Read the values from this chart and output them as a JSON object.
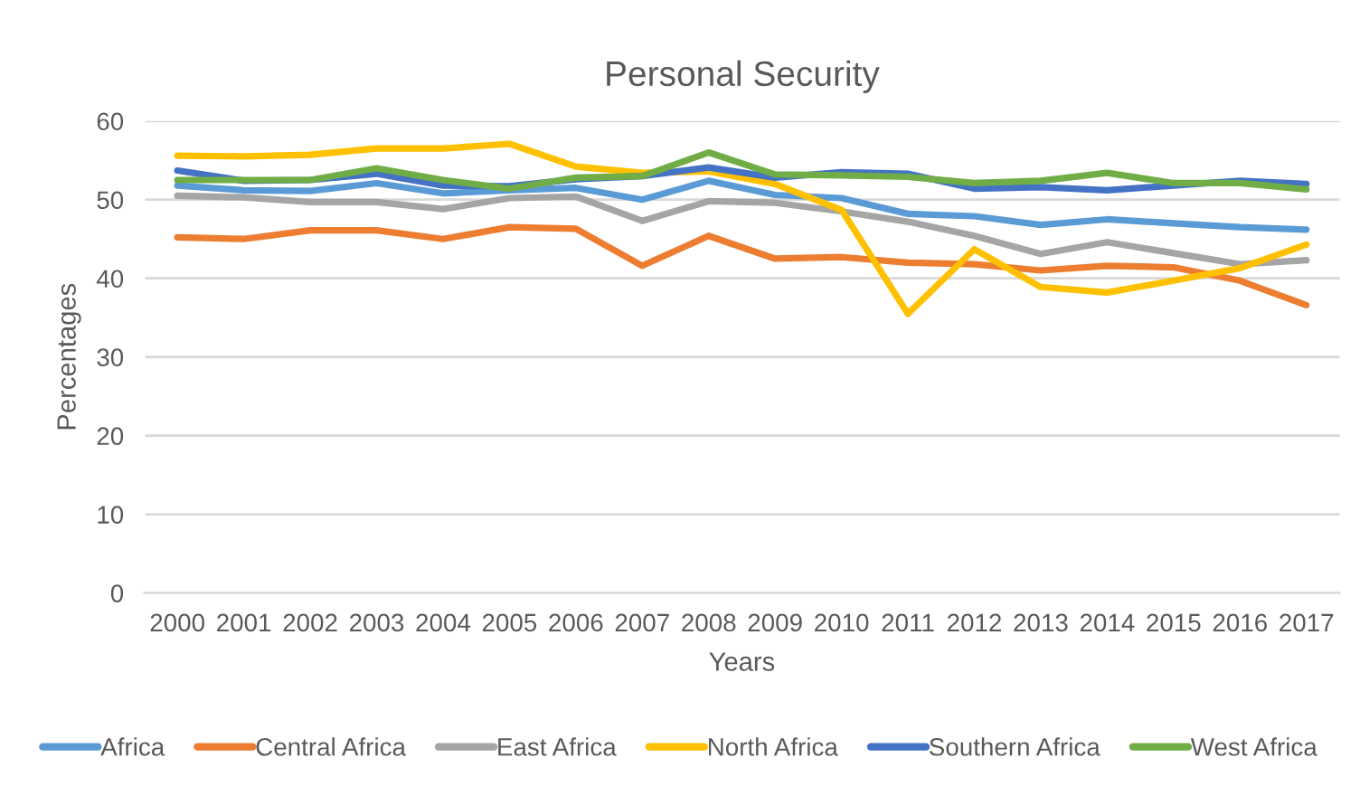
{
  "chart_data": {
    "type": "line",
    "title": "Personal Security",
    "xlabel": "Years",
    "ylabel": "Percentages",
    "categories": [
      "2000",
      "2001",
      "2002",
      "2003",
      "2004",
      "2005",
      "2006",
      "2007",
      "2008",
      "2009",
      "2010",
      "2011",
      "2012",
      "2013",
      "2014",
      "2015",
      "2016",
      "2017"
    ],
    "ylim": [
      0,
      60
    ],
    "yticks": [
      0,
      10,
      20,
      30,
      40,
      50,
      60
    ],
    "grid": "y",
    "legend": "bottom",
    "marker": "none",
    "line_style": "solid",
    "series": [
      {
        "name": "Africa",
        "color": "#5b9bd5",
        "values": [
          51.8,
          51.2,
          51.1,
          52.1,
          50.8,
          51.2,
          51.5,
          50.0,
          52.4,
          50.6,
          50.2,
          48.2,
          47.9,
          46.8,
          47.5,
          47.0,
          46.5,
          46.2
        ]
      },
      {
        "name": "Central Africa",
        "color": "#ed7d31",
        "values": [
          45.2,
          45.0,
          46.1,
          46.1,
          45.0,
          46.5,
          46.3,
          41.6,
          45.4,
          42.5,
          42.7,
          42.0,
          41.8,
          41.0,
          41.6,
          41.4,
          39.7,
          36.6
        ]
      },
      {
        "name": "East Africa",
        "color": "#a5a5a5",
        "values": [
          50.5,
          50.3,
          49.7,
          49.7,
          48.8,
          50.2,
          50.4,
          47.3,
          49.8,
          49.6,
          48.5,
          47.2,
          45.4,
          43.1,
          44.6,
          43.2,
          41.8,
          42.3
        ]
      },
      {
        "name": "North Africa",
        "color": "#ffc000",
        "values": [
          55.6,
          55.5,
          55.7,
          56.5,
          56.5,
          57.1,
          54.2,
          53.4,
          53.6,
          52.0,
          48.7,
          35.5,
          43.7,
          38.9,
          38.2,
          39.7,
          41.3,
          44.3
        ]
      },
      {
        "name": "Southern Africa",
        "color": "#4472c4",
        "values": [
          53.7,
          52.4,
          52.5,
          53.3,
          51.8,
          51.7,
          52.6,
          53.0,
          54.1,
          52.8,
          53.5,
          53.3,
          51.4,
          51.6,
          51.2,
          51.8,
          52.4,
          52.0
        ]
      },
      {
        "name": "West Africa",
        "color": "#70ad47",
        "values": [
          52.5,
          52.5,
          52.5,
          54.0,
          52.5,
          51.4,
          52.8,
          53.0,
          56.0,
          53.2,
          53.1,
          52.9,
          52.1,
          52.4,
          53.4,
          52.1,
          52.1,
          51.3
        ]
      }
    ]
  }
}
